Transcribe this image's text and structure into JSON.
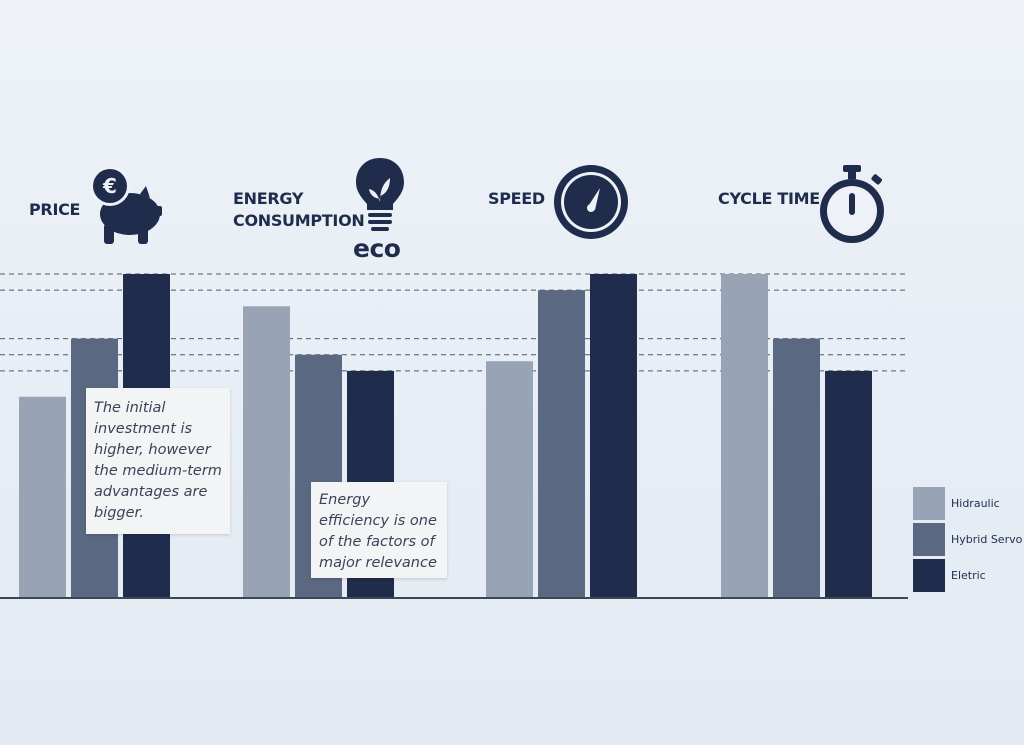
{
  "colors": {
    "hydraulic": "#98a4b6",
    "hybrid_servo": "#5b6882",
    "electric": "#1f2c4c",
    "icon": "#1f2c4c",
    "baseline": "#3d4556",
    "dashed": "#525a69"
  },
  "icons": {
    "price": "piggy-bank-euro-icon",
    "energy": "lightbulb-leaf-icon",
    "speed": "speedometer-icon",
    "cycle_time": "stopwatch-icon"
  },
  "eco_text": "eco",
  "notes": {
    "price": "The initial investment is higher, however the medium-term advantages are bigger.",
    "energy": "Energy efficiency is one of the factors of major relevance"
  },
  "chart_data": {
    "type": "bar",
    "categories": [
      "PRICE",
      "ENERGY CONSUMPTION",
      "SPEED",
      "CYCLE TIME"
    ],
    "category_lines": [
      [
        "PRICE"
      ],
      [
        "ENERGY",
        "CONSUMPTION"
      ],
      [
        "SPEED"
      ],
      [
        "CYCLE TIME"
      ]
    ],
    "series": [
      {
        "name": "Hidraulic",
        "values": [
          62,
          90,
          73,
          100
        ]
      },
      {
        "name": "Hybrid Servo",
        "values": [
          80,
          75,
          95,
          80
        ]
      },
      {
        "name": "Eletric",
        "values": [
          100,
          70,
          100,
          70
        ]
      }
    ],
    "ylim": [
      0,
      100
    ],
    "y_axis_shown": false,
    "reference_lines": [
      100,
      95,
      80,
      75,
      70
    ],
    "legend_position": "bottom-right"
  }
}
